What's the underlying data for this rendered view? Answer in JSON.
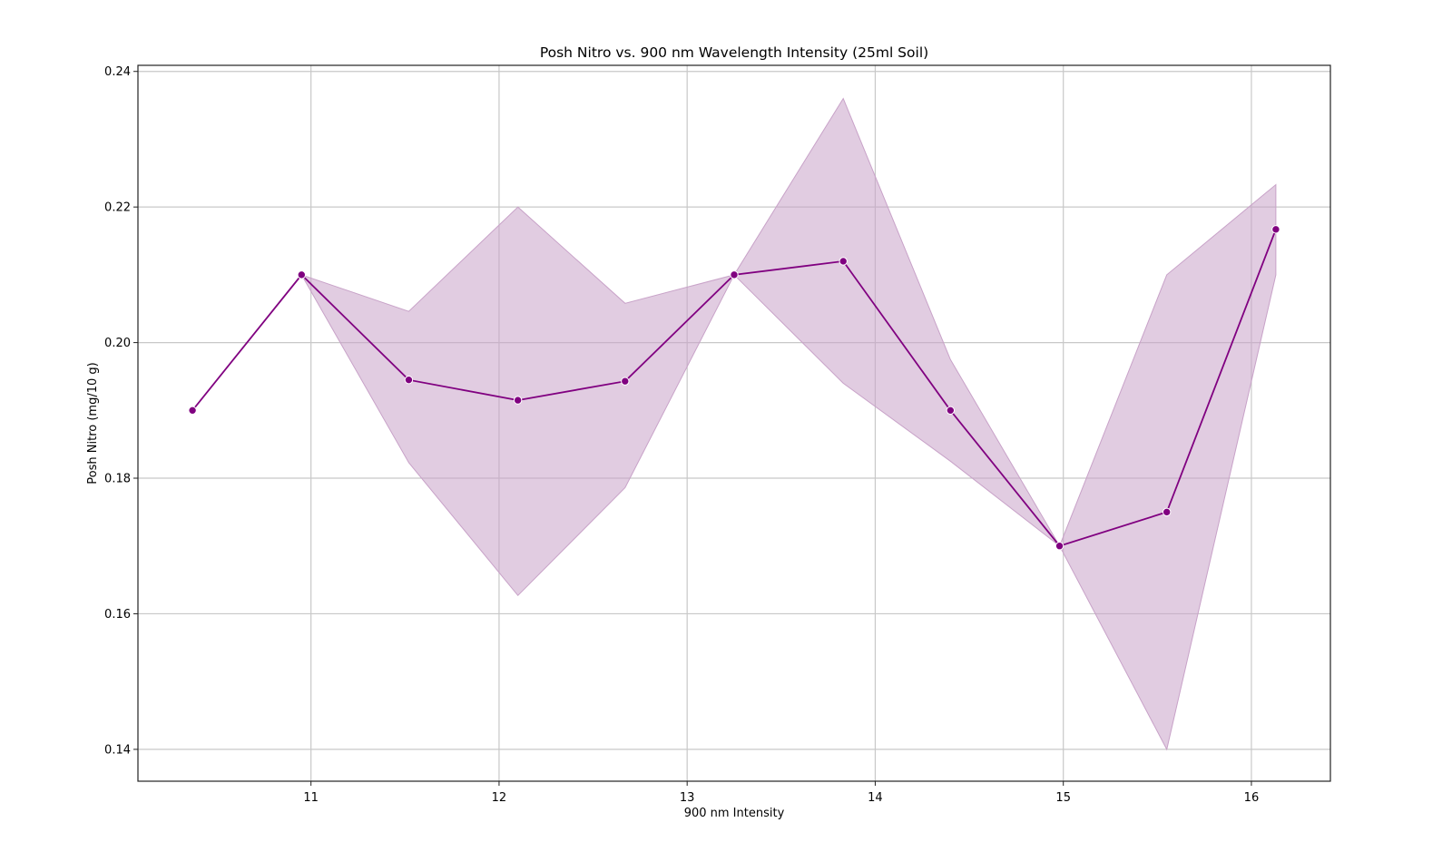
{
  "chart_data": {
    "type": "line",
    "title": "Posh Nitro vs. 900 nm Wavelength Intensity (25ml Soil)",
    "xlabel": "900 nm Intensity",
    "ylabel": "Posh Nitro (mg/10 g)",
    "xlim": [
      10.08,
      16.42
    ],
    "ylim": [
      0.1353,
      0.2409
    ],
    "x_ticks": [
      11,
      12,
      13,
      14,
      15,
      16
    ],
    "x_tick_labels": [
      "11",
      "12",
      "13",
      "14",
      "15",
      "16"
    ],
    "y_ticks": [
      0.14,
      0.16,
      0.18,
      0.2,
      0.22,
      0.24
    ],
    "y_tick_labels": [
      "0.14",
      "0.16",
      "0.18",
      "0.20",
      "0.22",
      "0.24"
    ],
    "grid": true,
    "line_color": "#800080",
    "band_color": "#c8a2c8",
    "series": [
      {
        "x": [
          10.37,
          10.95,
          11.52,
          12.1,
          12.67,
          13.25,
          13.83,
          14.4,
          14.98,
          15.55,
          16.13
        ],
        "y": [
          0.19,
          0.21,
          0.1945,
          0.1915,
          0.1943,
          0.21,
          0.212,
          0.19,
          0.17,
          0.175,
          0.2167
        ],
        "band_lower": [
          0.19,
          0.21,
          0.1823,
          0.1627,
          0.1786,
          0.21,
          0.194,
          0.1825,
          0.17,
          0.14,
          0.21
        ],
        "band_upper": [
          0.19,
          0.21,
          0.2046,
          0.22,
          0.2058,
          0.21,
          0.236,
          0.1975,
          0.17,
          0.21,
          0.2233
        ]
      }
    ]
  }
}
